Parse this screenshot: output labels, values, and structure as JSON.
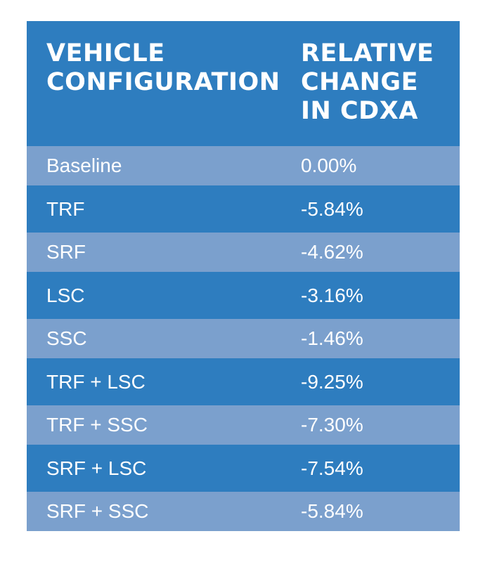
{
  "chart_data": {
    "type": "table",
    "columns": [
      "VEHICLE\nCONFIGURATION",
      "RELATIVE\nCHANGE\nIN CDXA"
    ],
    "rows": [
      {
        "configuration": "Baseline",
        "change": "0.00%"
      },
      {
        "configuration": "TRF",
        "change": "-5.84%"
      },
      {
        "configuration": "SRF",
        "change": "-4.62%"
      },
      {
        "configuration": "LSC",
        "change": "-3.16%"
      },
      {
        "configuration": "SSC",
        "change": "-1.46%"
      },
      {
        "configuration": "TRF + LSC",
        "change": "-9.25%"
      },
      {
        "configuration": "TRF + SSC",
        "change": "-7.30%"
      },
      {
        "configuration": "SRF + LSC",
        "change": "-7.54%"
      },
      {
        "configuration": "SRF + SSC",
        "change": "-5.84%"
      }
    ]
  },
  "colors": {
    "header_bg": "#2e7dbf",
    "row_light": "#7ba0cd",
    "row_dark": "#2e7dbf",
    "text": "#ffffff"
  }
}
